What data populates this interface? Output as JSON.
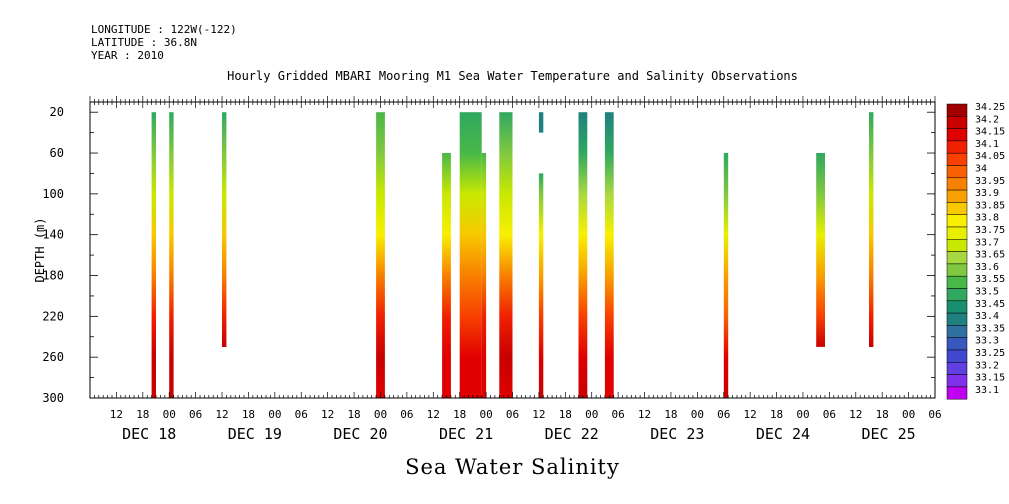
{
  "header": {
    "longitude": "LONGITUDE : 122W(-122)",
    "latitude": "LATITUDE : 36.8N",
    "year": "YEAR : 2010"
  },
  "caption": "Sea Water Salinity",
  "chart_data": {
    "type": "heatmap",
    "title": "Hourly Gridded MBARI Mooring M1 Sea Water Temperature and Salinity Observations",
    "xlabel": "",
    "ylabel": "DEPTH (m)",
    "x_unit": "hours since 2010-12-17 06:00 (axis shows DEC 18 – DEC 25)",
    "xlim": [
      "2010-12-17 06:00",
      "2010-12-25 06:00"
    ],
    "ylim": [
      300,
      10
    ],
    "y_ticks": [
      20,
      60,
      100,
      140,
      180,
      220,
      260,
      300
    ],
    "x_hour_ticks": [
      "12",
      "18",
      "00",
      "06",
      "12",
      "18",
      "00",
      "06",
      "12",
      "18",
      "00",
      "06",
      "12",
      "18",
      "00",
      "06",
      "12",
      "18",
      "00",
      "06",
      "12",
      "18",
      "00",
      "06",
      "12",
      "18",
      "00",
      "06",
      "12",
      "18",
      "00",
      "06"
    ],
    "x_day_labels": [
      {
        "label": "DEC 18",
        "date": "2010-12-18 00:00"
      },
      {
        "label": "DEC 19",
        "date": "2010-12-19 00:00"
      },
      {
        "label": "DEC 20",
        "date": "2010-12-20 00:00"
      },
      {
        "label": "DEC 21",
        "date": "2010-12-21 00:00"
      },
      {
        "label": "DEC 22",
        "date": "2010-12-22 00:00"
      },
      {
        "label": "DEC 23",
        "date": "2010-12-23 00:00"
      },
      {
        "label": "DEC 24",
        "date": "2010-12-24 00:00"
      },
      {
        "label": "DEC 25",
        "date": "2010-12-25 00:00"
      }
    ],
    "colorbar": {
      "levels": [
        "34.25",
        "34.2",
        "34.15",
        "34.1",
        "34.05",
        "34",
        "33.95",
        "33.9",
        "33.85",
        "33.8",
        "33.75",
        "33.7",
        "33.65",
        "33.6",
        "33.55",
        "33.5",
        "33.45",
        "33.4",
        "33.35",
        "33.3",
        "33.25",
        "33.2",
        "33.15",
        "33.1"
      ],
      "colors": [
        "#a00000",
        "#c80000",
        "#e00000",
        "#f02000",
        "#f84000",
        "#f86000",
        "#f88000",
        "#f8a000",
        "#f8c800",
        "#f8f000",
        "#e8f000",
        "#c8e800",
        "#a8d840",
        "#80c840",
        "#48b848",
        "#30a860",
        "#189070",
        "#208080",
        "#3070a0",
        "#3858c0",
        "#4048d0",
        "#6040e0",
        "#8030e8",
        "#c000f0"
      ]
    },
    "columns": [
      {
        "start": "2010-12-17 20:00",
        "end": "2010-12-17 21:00",
        "depth_top": 20,
        "depth_bottom": 300,
        "profile": [
          [
            20,
            33.5
          ],
          [
            60,
            33.6
          ],
          [
            100,
            33.7
          ],
          [
            140,
            33.85
          ],
          [
            180,
            33.95
          ],
          [
            220,
            34.1
          ],
          [
            260,
            34.2
          ],
          [
            300,
            34.2
          ]
        ]
      },
      {
        "start": "2010-12-18 00:00",
        "end": "2010-12-18 01:00",
        "depth_top": 20,
        "depth_bottom": 300,
        "profile": [
          [
            20,
            33.5
          ],
          [
            60,
            33.6
          ],
          [
            100,
            33.7
          ],
          [
            140,
            33.85
          ],
          [
            180,
            33.95
          ],
          [
            220,
            34.1
          ],
          [
            260,
            34.2
          ],
          [
            300,
            34.2
          ]
        ]
      },
      {
        "start": "2010-12-18 12:00",
        "end": "2010-12-18 13:00",
        "depth_top": 20,
        "depth_bottom": 250,
        "profile": [
          [
            20,
            33.5
          ],
          [
            60,
            33.6
          ],
          [
            100,
            33.7
          ],
          [
            140,
            33.85
          ],
          [
            180,
            33.95
          ],
          [
            220,
            34.1
          ],
          [
            250,
            34.2
          ]
        ]
      },
      {
        "start": "2010-12-19 23:00",
        "end": "2010-12-20 01:00",
        "depth_top": 20,
        "depth_bottom": 300,
        "profile": [
          [
            20,
            33.55
          ],
          [
            60,
            33.6
          ],
          [
            100,
            33.7
          ],
          [
            140,
            33.8
          ],
          [
            180,
            33.95
          ],
          [
            220,
            34.1
          ],
          [
            260,
            34.2
          ],
          [
            300,
            34.15
          ]
        ]
      },
      {
        "start": "2010-12-20 14:00",
        "end": "2010-12-20 16:00",
        "depth_top": 60,
        "depth_bottom": 300,
        "profile": [
          [
            60,
            33.55
          ],
          [
            100,
            33.7
          ],
          [
            140,
            33.8
          ],
          [
            180,
            33.95
          ],
          [
            220,
            34.1
          ],
          [
            260,
            34.15
          ],
          [
            300,
            34.15
          ]
        ]
      },
      {
        "start": "2010-12-20 18:00",
        "end": "2010-12-20 23:00",
        "depth_top": 20,
        "depth_bottom": 300,
        "profile": [
          [
            20,
            33.5
          ],
          [
            60,
            33.55
          ],
          [
            100,
            33.7
          ],
          [
            140,
            33.85
          ],
          [
            180,
            33.95
          ],
          [
            220,
            34.05
          ],
          [
            260,
            34.15
          ],
          [
            300,
            34.15
          ]
        ]
      },
      {
        "start": "2010-12-20 23:00",
        "end": "2010-12-21 00:00",
        "depth_top": 60,
        "depth_bottom": 300,
        "profile": [
          [
            60,
            33.55
          ],
          [
            100,
            33.7
          ],
          [
            140,
            33.85
          ],
          [
            180,
            33.95
          ],
          [
            220,
            34.1
          ],
          [
            260,
            34.15
          ],
          [
            300,
            34.15
          ]
        ]
      },
      {
        "start": "2010-12-21 03:00",
        "end": "2010-12-21 06:00",
        "depth_top": 20,
        "depth_bottom": 300,
        "profile": [
          [
            20,
            33.5
          ],
          [
            60,
            33.6
          ],
          [
            100,
            33.7
          ],
          [
            140,
            33.8
          ],
          [
            180,
            33.95
          ],
          [
            220,
            34.1
          ],
          [
            260,
            34.2
          ],
          [
            300,
            34.15
          ]
        ]
      },
      {
        "start": "2010-12-21 12:00",
        "end": "2010-12-21 13:00",
        "depth_top": 20,
        "depth_bottom": 40,
        "profile": [
          [
            20,
            33.4
          ],
          [
            40,
            33.4
          ]
        ]
      },
      {
        "start": "2010-12-21 12:00",
        "end": "2010-12-21 13:00",
        "depth_top": 80,
        "depth_bottom": 300,
        "profile": [
          [
            80,
            33.5
          ],
          [
            100,
            33.6
          ],
          [
            140,
            33.8
          ],
          [
            180,
            33.9
          ],
          [
            220,
            34.05
          ],
          [
            260,
            34.15
          ],
          [
            300,
            34.2
          ]
        ]
      },
      {
        "start": "2010-12-21 21:00",
        "end": "2010-12-21 23:00",
        "depth_top": 20,
        "depth_bottom": 300,
        "profile": [
          [
            20,
            33.4
          ],
          [
            60,
            33.5
          ],
          [
            100,
            33.65
          ],
          [
            140,
            33.8
          ],
          [
            180,
            33.9
          ],
          [
            220,
            34.05
          ],
          [
            260,
            34.15
          ],
          [
            300,
            34.2
          ]
        ]
      },
      {
        "start": "2010-12-22 03:00",
        "end": "2010-12-22 05:00",
        "depth_top": 20,
        "depth_bottom": 300,
        "profile": [
          [
            20,
            33.4
          ],
          [
            60,
            33.5
          ],
          [
            100,
            33.65
          ],
          [
            140,
            33.8
          ],
          [
            180,
            33.9
          ],
          [
            220,
            34.05
          ],
          [
            260,
            34.15
          ],
          [
            300,
            34.15
          ]
        ]
      },
      {
        "start": "2010-12-23 06:00",
        "end": "2010-12-23 07:00",
        "depth_top": 60,
        "depth_bottom": 300,
        "profile": [
          [
            60,
            33.5
          ],
          [
            100,
            33.6
          ],
          [
            140,
            33.75
          ],
          [
            180,
            33.9
          ],
          [
            220,
            34.0
          ],
          [
            260,
            34.15
          ],
          [
            300,
            34.2
          ]
        ]
      },
      {
        "start": "2010-12-24 03:00",
        "end": "2010-12-24 05:00",
        "depth_top": 60,
        "depth_bottom": 250,
        "profile": [
          [
            60,
            33.5
          ],
          [
            100,
            33.6
          ],
          [
            140,
            33.75
          ],
          [
            180,
            33.9
          ],
          [
            220,
            34.05
          ],
          [
            250,
            34.2
          ]
        ]
      },
      {
        "start": "2010-12-24 15:00",
        "end": "2010-12-24 16:00",
        "depth_top": 20,
        "depth_bottom": 250,
        "profile": [
          [
            20,
            33.5
          ],
          [
            60,
            33.6
          ],
          [
            100,
            33.7
          ],
          [
            140,
            33.85
          ],
          [
            180,
            33.95
          ],
          [
            220,
            34.1
          ],
          [
            250,
            34.2
          ]
        ]
      }
    ]
  }
}
